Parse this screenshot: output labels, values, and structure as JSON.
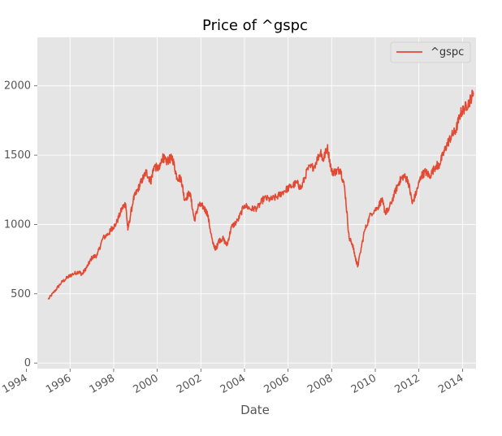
{
  "chart_data": {
    "type": "line",
    "title": "Price of ^gspc",
    "xlabel": "Date",
    "ylabel": "",
    "xlim": [
      1994.5,
      2014.62
    ],
    "ylim": [
      -40,
      2350
    ],
    "x_ticks": [
      1994,
      1996,
      1998,
      2000,
      2002,
      2004,
      2006,
      2008,
      2010,
      2012,
      2014
    ],
    "x_tick_labels": [
      "1994",
      "1996",
      "1998",
      "2000",
      "2002",
      "2004",
      "2006",
      "2008",
      "2010",
      "2012",
      "2014"
    ],
    "y_ticks": [
      0,
      500,
      1000,
      1500,
      2000
    ],
    "y_tick_labels": [
      "0",
      "500",
      "1000",
      "1500",
      "2000"
    ],
    "grid": true,
    "legend_position": "top-right",
    "colors": {
      "series": "#E24A33",
      "plot_background": "#E5E5E5",
      "grid": "#FFFFFF",
      "text": "#555555"
    },
    "series": [
      {
        "name": "^gspc",
        "x": [
          1995.0,
          1995.3,
          1995.6,
          1995.9,
          1996.1,
          1996.4,
          1996.55,
          1996.8,
          1997.0,
          1997.25,
          1997.5,
          1997.8,
          1997.9,
          1998.1,
          1998.4,
          1998.55,
          1998.65,
          1998.9,
          1999.1,
          1999.3,
          1999.5,
          1999.7,
          1999.85,
          2000.1,
          2000.25,
          2000.4,
          2000.55,
          2000.7,
          2000.9,
          2001.1,
          2001.25,
          2001.5,
          2001.7,
          2001.9,
          2002.1,
          2002.3,
          2002.55,
          2002.7,
          2002.8,
          2003.0,
          2003.2,
          2003.4,
          2003.7,
          2004.0,
          2004.3,
          2004.6,
          2004.9,
          2005.2,
          2005.5,
          2005.8,
          2006.1,
          2006.4,
          2006.6,
          2006.9,
          2007.2,
          2007.5,
          2007.6,
          2007.8,
          2008.0,
          2008.2,
          2008.4,
          2008.6,
          2008.8,
          2008.95,
          2009.1,
          2009.2,
          2009.5,
          2009.8,
          2010.1,
          2010.3,
          2010.45,
          2010.6,
          2010.9,
          2011.1,
          2011.3,
          2011.5,
          2011.7,
          2011.9,
          2012.1,
          2012.3,
          2012.5,
          2012.8,
          2012.9,
          2013.1,
          2013.3,
          2013.5,
          2013.7,
          2013.9,
          2014.1,
          2014.3,
          2014.5
        ],
        "values": [
          460,
          520,
          580,
          620,
          640,
          660,
          640,
          700,
          760,
          780,
          900,
          940,
          970,
          1000,
          1120,
          1150,
          960,
          1180,
          1250,
          1320,
          1380,
          1310,
          1420,
          1400,
          1490,
          1450,
          1470,
          1480,
          1340,
          1330,
          1180,
          1230,
          1030,
          1140,
          1130,
          1080,
          860,
          820,
          880,
          900,
          850,
          980,
          1030,
          1140,
          1110,
          1120,
          1190,
          1180,
          1200,
          1240,
          1270,
          1300,
          1260,
          1400,
          1420,
          1530,
          1460,
          1560,
          1380,
          1380,
          1400,
          1260,
          900,
          860,
          750,
          700,
          950,
          1080,
          1120,
          1180,
          1090,
          1100,
          1230,
          1310,
          1350,
          1320,
          1150,
          1240,
          1350,
          1380,
          1350,
          1430,
          1420,
          1500,
          1580,
          1640,
          1680,
          1800,
          1840,
          1880,
          1950
        ]
      }
    ]
  }
}
